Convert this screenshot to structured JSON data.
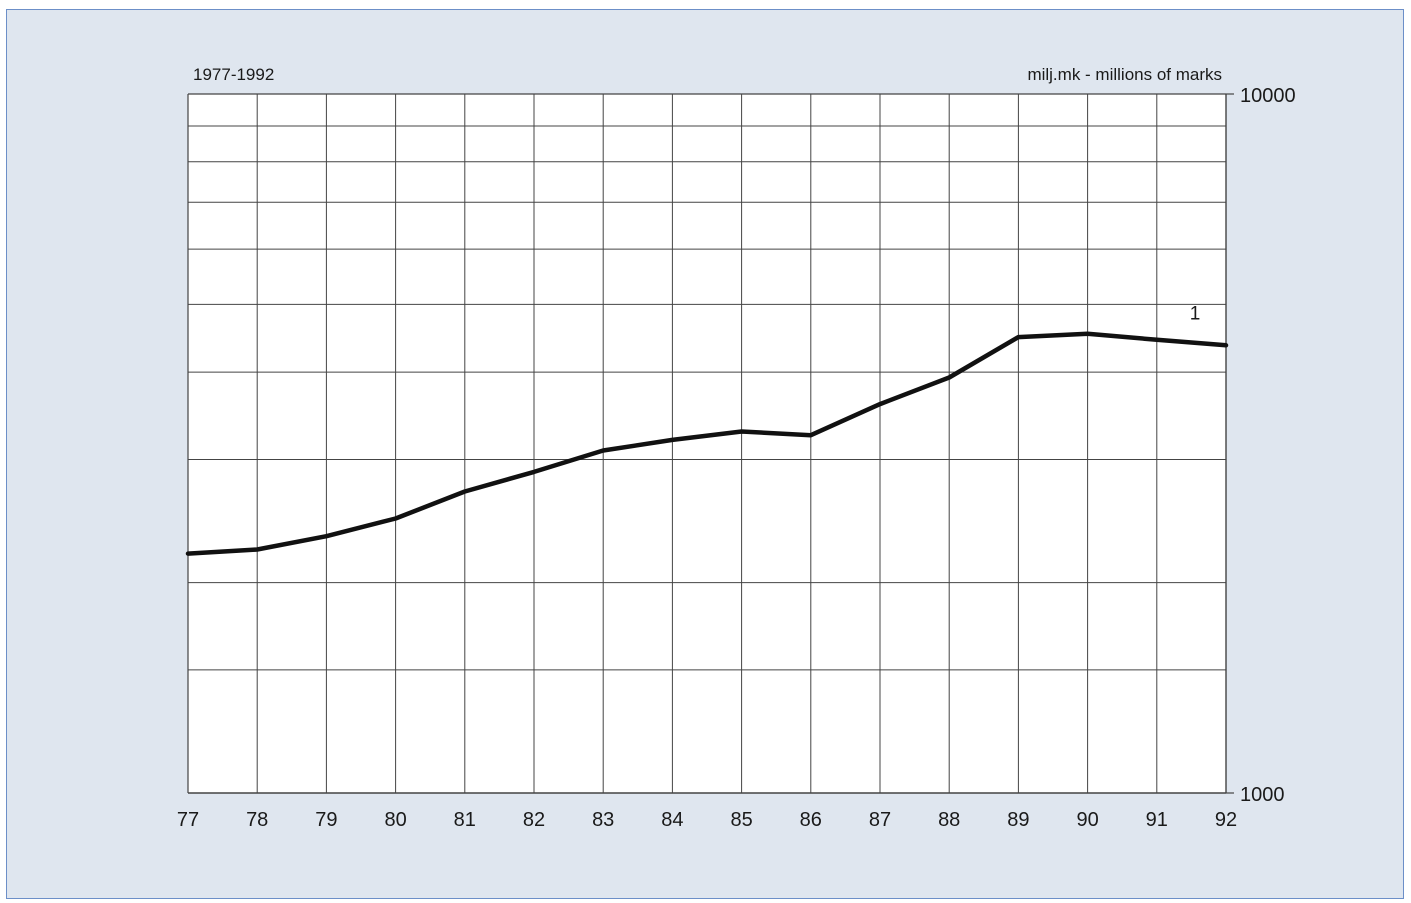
{
  "chart_data": {
    "type": "line",
    "title": "",
    "period_label": "1977-1992",
    "ylabel": "milj.mk - millions of marks",
    "xlabel": "",
    "x_tick_labels": [
      "77",
      "78",
      "79",
      "80",
      "81",
      "82",
      "83",
      "84",
      "85",
      "86",
      "87",
      "88",
      "89",
      "90",
      "91",
      "92"
    ],
    "x": [
      1977,
      1978,
      1979,
      1980,
      1981,
      1982,
      1983,
      1984,
      1985,
      1986,
      1987,
      1988,
      1989,
      1990,
      1991,
      1992
    ],
    "xlim": [
      1977,
      1992
    ],
    "y_scale": "log",
    "ylim": [
      1000,
      10000
    ],
    "y_tick_labels": [
      "1000",
      "10000"
    ],
    "y_ticks": [
      1000,
      10000
    ],
    "y_gridlines": [
      1500,
      2000,
      3000,
      4000,
      5000,
      6000,
      7000,
      8000,
      9000
    ],
    "grid": true,
    "series": [
      {
        "name": "1",
        "color": "#111111",
        "values": [
          2200,
          2230,
          2330,
          2470,
          2700,
          2880,
          3090,
          3200,
          3290,
          3250,
          3600,
          3930,
          4490,
          4540,
          4450,
          4370
        ]
      }
    ]
  },
  "colors": {
    "background": "#dfe6ef",
    "frame_border": "#6c8fc8",
    "plot_background": "#ffffff",
    "grid": "#444444",
    "line": "#111111"
  }
}
